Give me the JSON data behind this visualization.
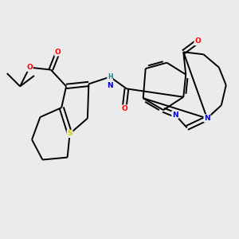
{
  "bg_color": "#ebebeb",
  "bond_color": "#000000",
  "bond_width": 1.4,
  "figsize": [
    3.0,
    3.0
  ],
  "dpi": 100,
  "atom_colors": {
    "O": "#ff0000",
    "N": "#0000cc",
    "S": "#cccc00",
    "H": "#008888",
    "C": "#000000"
  },
  "xlim": [
    0,
    10
  ],
  "ylim": [
    0,
    10
  ]
}
